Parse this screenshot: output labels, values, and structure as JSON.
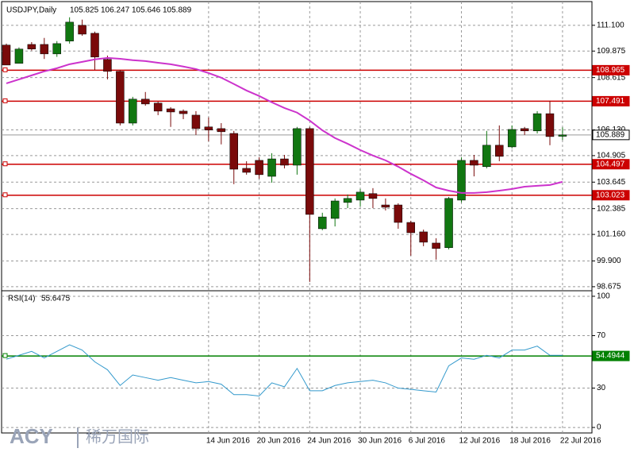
{
  "header": {
    "symbol": "USDJPY,Daily",
    "ohlc": [
      105.825,
      106.247,
      105.646,
      105.889
    ],
    "watermark": [
      "ACY",
      "稀万国际"
    ]
  },
  "chart_data": [
    {
      "type": "candlestick",
      "categories": [
        null,
        null,
        null,
        null,
        null,
        null,
        null,
        null,
        null,
        null,
        null,
        null,
        null,
        null,
        null,
        null,
        "14 Jun 2016",
        null,
        null,
        null,
        "20 Jun 2016",
        null,
        null,
        null,
        "24 Jun 2016",
        null,
        null,
        null,
        "30 Jun 2016",
        null,
        null,
        null,
        "6 Jul 2016",
        null,
        null,
        null,
        "12 Jul 2016",
        null,
        null,
        null,
        "18 Jul 2016",
        null,
        null,
        null,
        "22 Jul 2016"
      ],
      "open": [
        110.16,
        109.29,
        110.19,
        110.19,
        109.74,
        110.35,
        111.1,
        110.72,
        109.48,
        108.91,
        106.45,
        107.59,
        107.4,
        107.13,
        107.02,
        106.83,
        106.27,
        106.19,
        105.96,
        104.3,
        104.68,
        103.92,
        104.75,
        104.45,
        106.19,
        101.43,
        101.92,
        102.68,
        102.79,
        103.1,
        102.56,
        102.56,
        101.73,
        101.28,
        100.75,
        100.53,
        102.79,
        104.68,
        104.38,
        105.4,
        105.32,
        106.19,
        106.08,
        106.9,
        105.825
      ],
      "high": [
        110.23,
        110.05,
        110.3,
        110.5,
        110.35,
        111.48,
        111.37,
        110.8,
        109.66,
        108.98,
        107.7,
        107.93,
        107.47,
        107.21,
        107.1,
        107.02,
        106.72,
        106.45,
        106.08,
        104.64,
        104.83,
        105.02,
        104.94,
        106.27,
        106.27,
        102.19,
        102.87,
        103.06,
        103.32,
        103.36,
        102.87,
        102.64,
        101.81,
        101.39,
        100.98,
        102.94,
        104.83,
        104.94,
        106.08,
        106.34,
        106.34,
        106.27,
        107.02,
        107.51,
        106.247
      ],
      "low": [
        109.21,
        109.29,
        109.9,
        109.5,
        109.6,
        110.23,
        110.6,
        108.98,
        108.53,
        106.34,
        106.34,
        107.28,
        106.83,
        106.27,
        106.64,
        105.89,
        105.59,
        105.44,
        103.55,
        104.0,
        103.81,
        103.62,
        104.3,
        104.0,
        98.9,
        101.36,
        101.54,
        102.41,
        102.49,
        102.41,
        102.3,
        101.43,
        100.15,
        100.6,
        99.96,
        100.45,
        102.68,
        103.92,
        104.3,
        104.64,
        105.25,
        105.89,
        105.96,
        105.4,
        105.646
      ],
      "close": [
        109.21,
        109.97,
        109.97,
        109.74,
        110.23,
        111.25,
        110.68,
        109.59,
        108.91,
        106.45,
        107.59,
        107.36,
        107.02,
        106.98,
        106.9,
        106.19,
        106.12,
        106.04,
        104.26,
        104.11,
        104.0,
        104.75,
        104.45,
        106.19,
        102.11,
        101.99,
        102.75,
        102.87,
        103.17,
        102.87,
        102.45,
        101.73,
        101.24,
        100.79,
        100.49,
        102.87,
        104.68,
        104.45,
        105.4,
        104.87,
        106.15,
        106.08,
        106.9,
        105.81,
        105.889
      ],
      "up_color": "#117711",
      "down_color": "#7a0a0a",
      "ma": {
        "color": "#cc33cc",
        "values": [
          108.34,
          108.53,
          108.72,
          108.91,
          109.06,
          109.25,
          109.36,
          109.48,
          109.55,
          109.51,
          109.44,
          109.4,
          109.32,
          109.25,
          109.14,
          109.02,
          108.83,
          108.61,
          108.31,
          108.0,
          107.74,
          107.44,
          107.17,
          106.95,
          106.57,
          106.11,
          105.74,
          105.47,
          105.17,
          104.91,
          104.68,
          104.38,
          104.04,
          103.73,
          103.39,
          103.24,
          103.13,
          103.13,
          103.17,
          103.24,
          103.32,
          103.43,
          103.47,
          103.51,
          103.66
        ]
      },
      "levels": [
        {
          "value": 108.965,
          "color": "#cc0000"
        },
        {
          "value": 107.491,
          "color": "#cc0000"
        },
        {
          "value": 105.889,
          "color": "#999999"
        },
        {
          "value": 104.497,
          "color": "#cc0000"
        },
        {
          "value": 103.023,
          "color": "#cc0000"
        }
      ],
      "ylim": [
        98.52,
        112.0
      ],
      "yticks": [
        {
          "value": 111.1,
          "label": "111.100"
        },
        109.875,
        108.615,
        {
          "value": 106.13,
          "label": "106.130"
        },
        104.905,
        103.645,
        102.385,
        {
          "value": 101.16,
          "label": "101.160"
        },
        {
          "value": 99.9,
          "label": "99.900"
        },
        98.675
      ],
      "grid": true
    },
    {
      "type": "line",
      "title": "RSI(14)",
      "current": 55.6475,
      "color": "#3399cc",
      "values": [
        52,
        55,
        58,
        53,
        58,
        63,
        59,
        50,
        44,
        32,
        40,
        38,
        36,
        38,
        36,
        34,
        35,
        33,
        25,
        25,
        24,
        34,
        31,
        45,
        28,
        28,
        32,
        34,
        35,
        36,
        34,
        30,
        29,
        28,
        27,
        47,
        53,
        52,
        55,
        53,
        59,
        59,
        62,
        55,
        55
      ],
      "level": {
        "value": 54.4944,
        "color": "#008000"
      },
      "ylim": [
        -4.2,
        103.6
      ],
      "yticks": [
        100,
        70,
        30,
        0
      ],
      "grid": true
    }
  ]
}
